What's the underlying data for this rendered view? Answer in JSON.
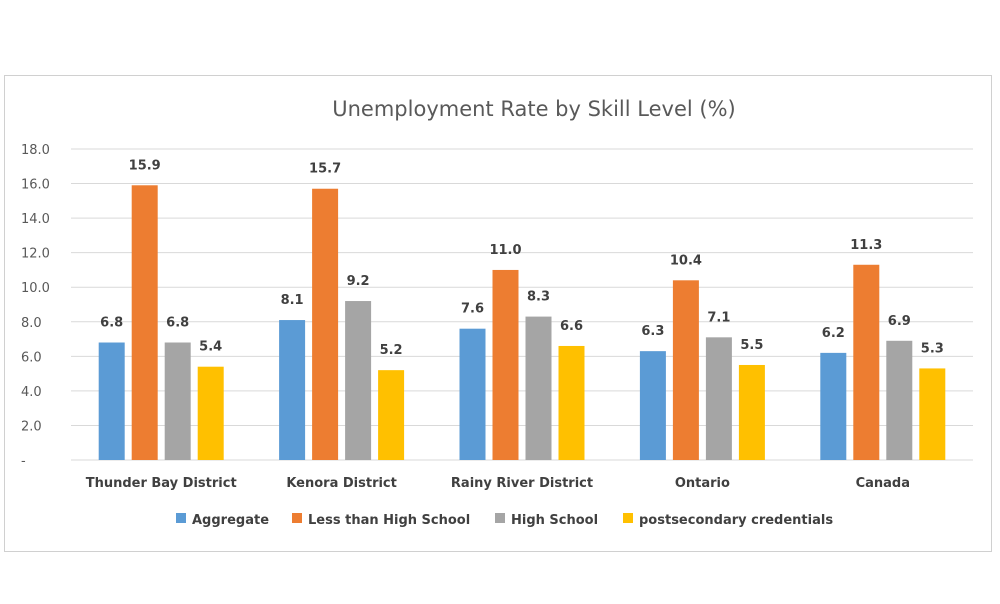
{
  "chart_data": {
    "type": "bar",
    "title": "Unemployment Rate by Skill Level (%)",
    "categories": [
      "Thunder Bay District",
      "Kenora District",
      "Rainy River District",
      "Ontario",
      "Canada"
    ],
    "series": [
      {
        "name": "Aggregate",
        "color": "#5B9BD5",
        "values": [
          6.8,
          8.1,
          7.6,
          6.3,
          6.2
        ],
        "labels": [
          "6.8",
          "8.1",
          "7.6",
          "6.3",
          "6.2"
        ]
      },
      {
        "name": "Less than High School",
        "color": "#ED7D31",
        "values": [
          15.9,
          15.7,
          11.0,
          10.4,
          11.3
        ],
        "labels": [
          "15.9",
          "15.7",
          "11.0",
          "10.4",
          "11.3"
        ]
      },
      {
        "name": "High School",
        "color": "#A5A5A5",
        "values": [
          6.8,
          9.2,
          8.3,
          7.1,
          6.9
        ],
        "labels": [
          "6.8",
          "9.2",
          "8.3",
          "7.1",
          "6.9"
        ]
      },
      {
        "name": "postsecondary credentials",
        "color": "#FFC000",
        "values": [
          5.4,
          5.2,
          6.6,
          5.5,
          5.3
        ],
        "labels": [
          "5.4",
          "5.2",
          "6.6",
          "5.5",
          "5.3"
        ]
      }
    ],
    "ylim": [
      0,
      18
    ],
    "yticks": [
      0,
      2,
      4,
      6,
      8,
      10,
      12,
      14,
      16,
      18
    ],
    "ytick_labels": [
      "-",
      "2.0",
      "4.0",
      "6.0",
      "8.0",
      "10.0",
      "12.0",
      "14.0",
      "16.0",
      "18.0"
    ],
    "xlabel": "",
    "ylabel": "",
    "grid": true,
    "legend_position": "bottom"
  }
}
